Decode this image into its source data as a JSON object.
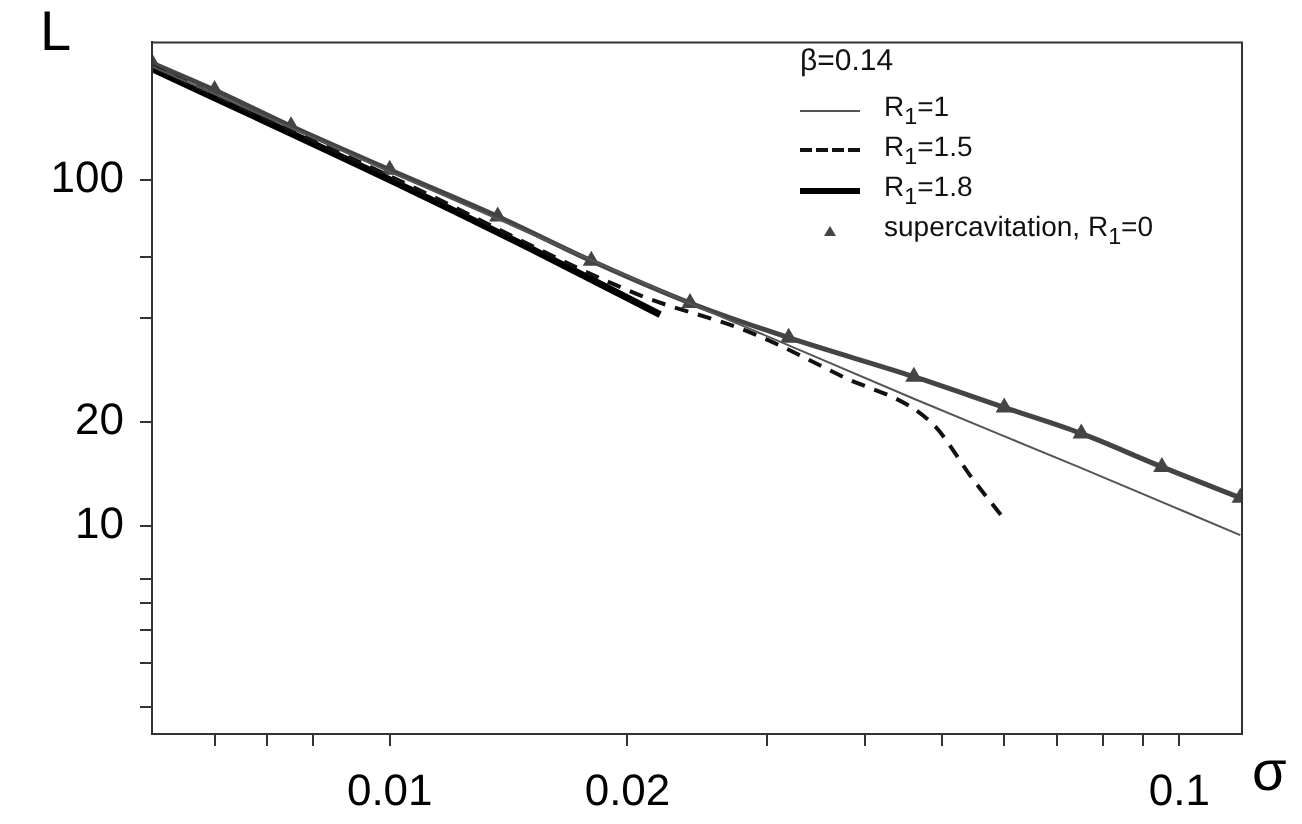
{
  "chart_data": {
    "type": "line",
    "xlabel": "σ",
    "ylabel": "L",
    "legend_title": "β=0.14",
    "legend": "top right",
    "log": "xy",
    "xlim": [
      0.005,
      0.12
    ],
    "ylim": [
      2.5,
      250
    ],
    "xticks": [
      {
        "value": 0.006,
        "label": null
      },
      {
        "value": 0.007,
        "label": null
      },
      {
        "value": 0.008,
        "label": null
      },
      0.01,
      0.02,
      {
        "value": 0.03,
        "label": null
      },
      {
        "value": 0.04,
        "label": null
      },
      {
        "value": 0.05,
        "label": null
      },
      {
        "value": 0.06,
        "label": null
      },
      {
        "value": 0.07,
        "label": null
      },
      {
        "value": 0.08,
        "label": null
      },
      {
        "value": 0.09,
        "label": null
      },
      0.1
    ],
    "yticks": [
      {
        "value": 3,
        "label": null
      },
      {
        "value": 4,
        "label": null
      },
      {
        "value": 5,
        "label": null
      },
      {
        "value": 6,
        "label": null
      },
      {
        "value": 7,
        "label": null
      },
      10,
      20,
      {
        "value": 40,
        "label": null
      },
      {
        "value": 60,
        "label": null
      },
      100
    ],
    "series": [
      {
        "name": "R$_{1}$=1",
        "color": "#555555",
        "line_style": "solid",
        "x": [
          0.005,
          0.01025,
          0.024,
          0.0461,
          0.0745,
          0.1194
        ],
        "values": [
          213,
          103,
          44,
          23.3,
          14.8,
          9.4
        ]
      },
      {
        "name": "R$_{1}$=1.5",
        "color": "#111111",
        "line_style": "dashed",
        "x": [
          0.005,
          0.01025,
          0.02075,
          0.0284,
          0.0372,
          0.0486,
          0.0548,
          0.0603
        ],
        "values": [
          213,
          100,
          46.4,
          36.5,
          27.2,
          19.8,
          13.6,
          10.3
        ]
      },
      {
        "name": "R$_{1}$=1.8",
        "color": "#000000",
        "line_style": "solid",
        "x": [
          0.005,
          0.01025,
          0.01515,
          0.022
        ],
        "values": [
          210,
          97.5,
          63,
          40.8
        ]
      },
      {
        "name": "supercavitation, R$_{1}$=0",
        "color": "#444444",
        "type": "line",
        "marker": "triangle",
        "line_style": "solid",
        "x": [
          0.005,
          0.006,
          0.0075,
          0.01,
          0.0137,
          0.018,
          0.024,
          0.032,
          0.0461,
          0.06,
          0.0751,
          0.095,
          0.1194
        ],
        "values": [
          218,
          182,
          143,
          107,
          78.4,
          58.4,
          44.1,
          35,
          27,
          22,
          18.5,
          14.8,
          12.05
        ]
      }
    ]
  }
}
